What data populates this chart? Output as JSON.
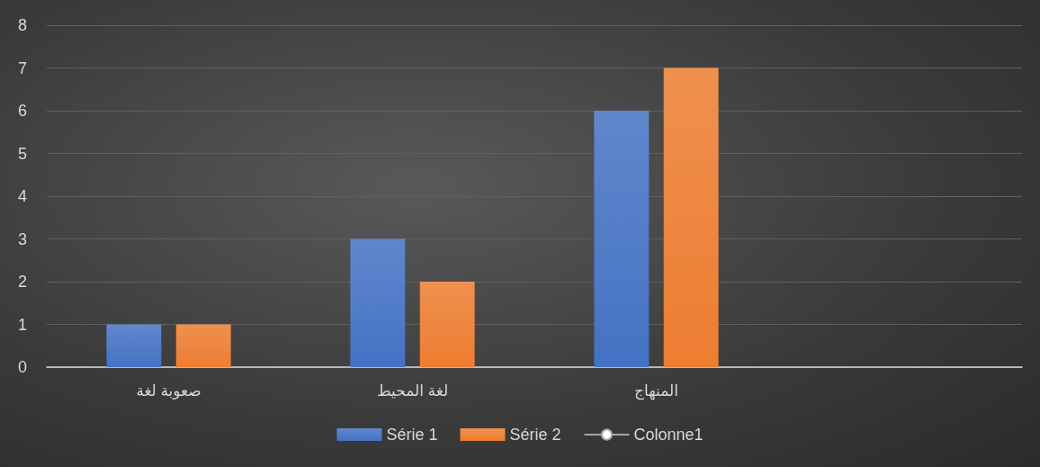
{
  "chart_data": {
    "type": "bar",
    "categories": [
      "صعوبة لغة",
      "لغة المحيط",
      "المنهاج",
      null
    ],
    "series": [
      {
        "name": "Série 1",
        "color": "#4472c4",
        "values": [
          1,
          3,
          6,
          null
        ]
      },
      {
        "name": "Série 2",
        "color": "#ed7d31",
        "values": [
          1,
          2,
          7,
          null
        ]
      },
      {
        "name": "Colonne1",
        "type": "line",
        "color": "#a5a5a5",
        "values": [
          null,
          null,
          null,
          null
        ]
      }
    ],
    "ylim": [
      0,
      8
    ],
    "yticks": [
      0,
      1,
      2,
      3,
      4,
      5,
      6,
      7,
      8
    ],
    "grid": "y",
    "legend": "bottom"
  }
}
